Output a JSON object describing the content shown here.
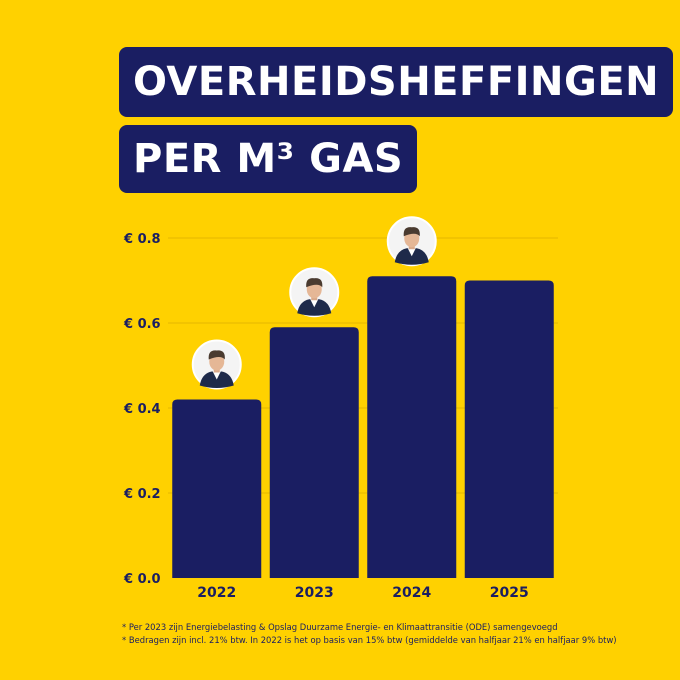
{
  "title": {
    "line1": "OVERHEIDSHEFFINGEN",
    "line2": "PER M³ GAS"
  },
  "colors": {
    "background": "#FFD100",
    "bar": "#1A1E62",
    "text": "#1A1E62",
    "title_box": "#1A1E62",
    "title_text": "#FFFFFF"
  },
  "chart_data": {
    "type": "bar",
    "categories": [
      "2022",
      "2023",
      "2024",
      "2025"
    ],
    "values": [
      0.42,
      0.59,
      0.71,
      0.7
    ],
    "ylim": [
      0,
      0.8
    ],
    "yticks": [
      0,
      0.2,
      0.4,
      0.6,
      0.8
    ],
    "ytick_labels": [
      "€ 0.0",
      "€ 0.2",
      "€ 0.4",
      "€ 0.6",
      "€ 0.8"
    ],
    "grid": true,
    "xlabel": "",
    "ylabel": "",
    "avatar_icons": [
      "person-portrait-icon",
      "person-portrait-icon",
      "person-portrait-icon"
    ]
  },
  "footnotes": [
    "* Per 2023 zijn Energiebelasting & Opslag Duurzame Energie- en Klimaattransitie (ODE) samengevoegd",
    "* Bedragen zijn incl. 21% btw. In 2022 is het op basis van 15% btw (gemiddelde van halfjaar 21% en halfjaar 9% btw)"
  ]
}
